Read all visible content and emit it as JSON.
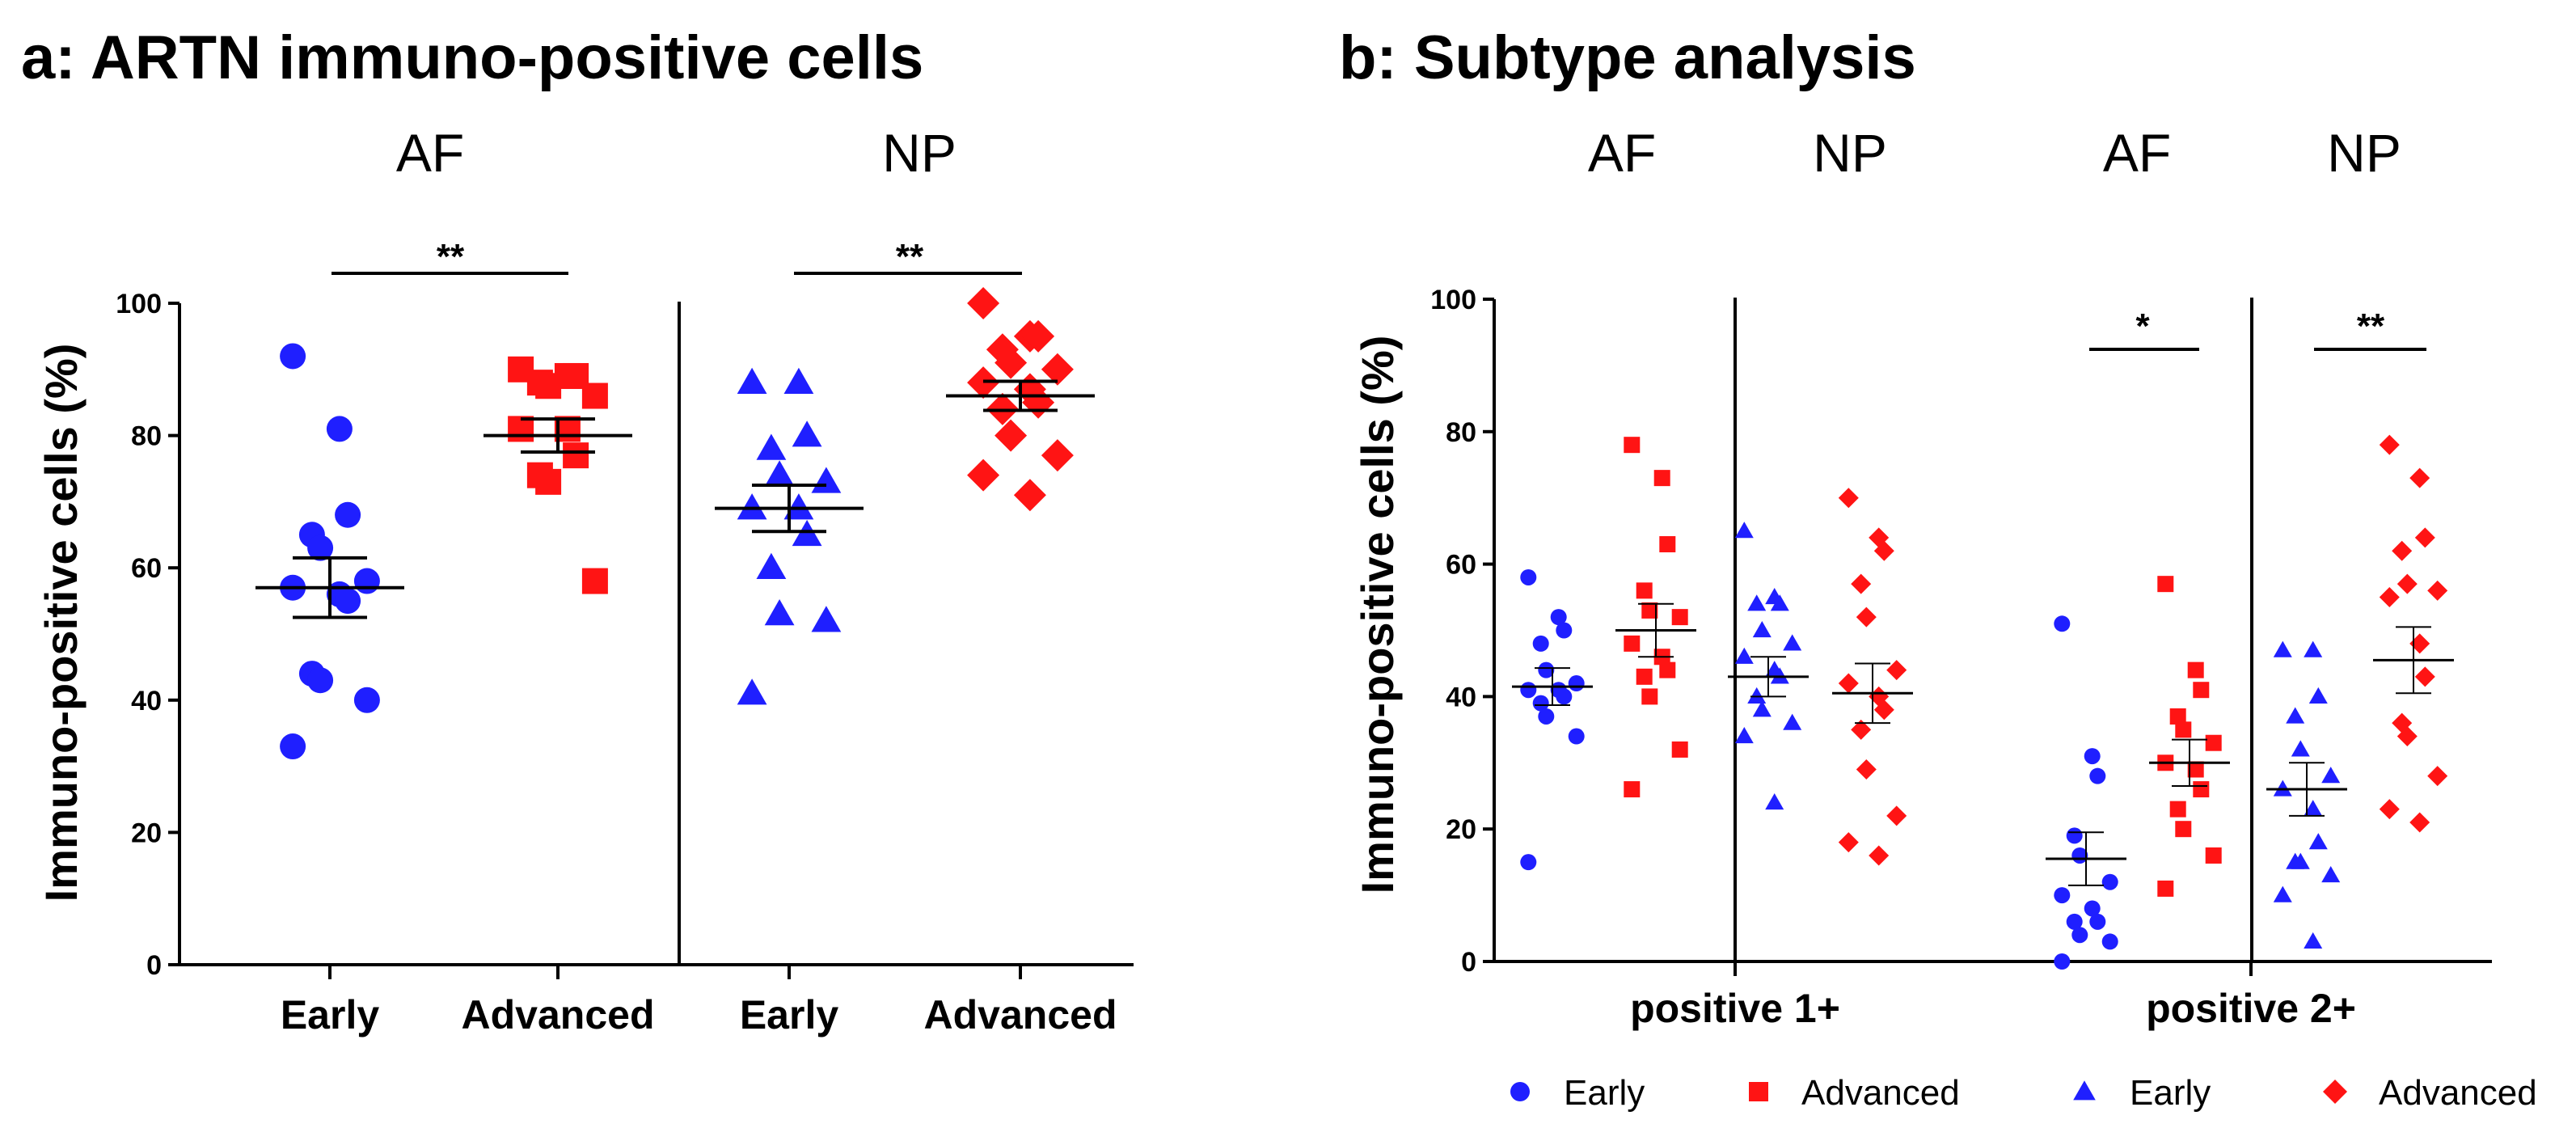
{
  "colors": {
    "early": "#1f1fff",
    "advanced": "#ff1414",
    "axis": "#000000"
  },
  "chart_data": [
    {
      "type": "scatter",
      "panel": "a",
      "title": "a: ARTN immuno-positive cells",
      "ylabel": "Immuno-positive cells (%)",
      "ylim": [
        0,
        100
      ],
      "yticks": [
        "0",
        "20",
        "40",
        "60",
        "80",
        "100"
      ],
      "group_headers": [
        "AF",
        "NP"
      ],
      "categories": [
        "Early",
        "Advanced",
        "Early",
        "Advanced"
      ],
      "significance": [
        "**",
        "**"
      ],
      "series": [
        {
          "name": "AF Early",
          "stage": "early",
          "marker": "circle",
          "values": [
            92,
            81,
            68,
            65,
            63,
            58,
            57,
            56,
            55,
            44,
            43,
            40,
            33
          ],
          "mean": 57,
          "sem": 4.5
        },
        {
          "name": "AF Advanced",
          "stage": "advanced",
          "marker": "square",
          "values": [
            90,
            89,
            89,
            88,
            87.5,
            86,
            81,
            81,
            77,
            74,
            73,
            58
          ],
          "mean": 80,
          "sem": 2.5
        },
        {
          "name": "NP Early",
          "stage": "early",
          "marker": "triangle",
          "values": [
            88,
            88,
            80,
            78,
            74,
            73,
            69,
            69,
            65,
            60,
            53,
            52,
            41
          ],
          "mean": 69,
          "sem": 3.5
        },
        {
          "name": "NP Advanced",
          "stage": "advanced",
          "marker": "diamond",
          "values": [
            100,
            95,
            95,
            93,
            91,
            90,
            88,
            87,
            85,
            84,
            80,
            77,
            74,
            71
          ],
          "mean": 86,
          "sem": 2.2
        }
      ]
    },
    {
      "type": "scatter",
      "panel": "b",
      "title": "b: Subtype analysis",
      "ylabel": "Immuno-positive cells (%)",
      "ylim": [
        0,
        100
      ],
      "yticks": [
        "0",
        "20",
        "40",
        "60",
        "80",
        "100"
      ],
      "group_headers": [
        "AF",
        "NP",
        "AF",
        "NP"
      ],
      "categories": [
        "positive 1+",
        "positive 2+"
      ],
      "significance": [
        "*",
        "**"
      ],
      "legend": [
        "Early",
        "Advanced",
        "Early",
        "Advanced"
      ],
      "series": [
        {
          "name": "1+ AF Early",
          "stage": "early",
          "marker": "circle",
          "values": [
            58,
            52,
            50,
            48,
            44,
            42,
            41,
            41,
            40,
            39,
            37,
            34,
            15
          ],
          "mean": 41.5,
          "sem": 2.8
        },
        {
          "name": "1+ AF Advanced",
          "stage": "advanced",
          "marker": "square",
          "values": [
            78,
            73,
            63,
            56,
            53,
            52,
            48,
            46,
            44,
            43,
            40,
            32,
            26
          ],
          "mean": 50,
          "sem": 4
        },
        {
          "name": "1+ NP Early",
          "stage": "early",
          "marker": "triangle",
          "values": [
            65,
            55,
            54,
            54,
            50,
            48,
            46,
            44,
            43,
            40,
            38,
            36,
            34,
            24
          ],
          "mean": 43,
          "sem": 3
        },
        {
          "name": "1+ NP Advanced",
          "stage": "advanced",
          "marker": "diamond",
          "values": [
            70,
            64,
            62,
            57,
            52,
            44,
            42,
            40,
            38,
            35,
            29,
            22,
            18,
            16
          ],
          "mean": 40.5,
          "sem": 4.5
        },
        {
          "name": "2+ AF Early",
          "stage": "early",
          "marker": "circle",
          "values": [
            51,
            31,
            28,
            19,
            16,
            12,
            10,
            8,
            6,
            6,
            4,
            3,
            0
          ],
          "mean": 15.5,
          "sem": 4
        },
        {
          "name": "2+ AF Advanced",
          "stage": "advanced",
          "marker": "square",
          "values": [
            57,
            44,
            41,
            37,
            35,
            33,
            30,
            29,
            26,
            23,
            20,
            16,
            11
          ],
          "mean": 30,
          "sem": 3.5
        },
        {
          "name": "2+ NP Early",
          "stage": "early",
          "marker": "triangle",
          "values": [
            47,
            47,
            40,
            37,
            32,
            28,
            26,
            23,
            18,
            15,
            15,
            13,
            10,
            3
          ],
          "mean": 26,
          "sem": 4
        },
        {
          "name": "2+ NP Advanced",
          "stage": "advanced",
          "marker": "diamond",
          "values": [
            78,
            73,
            64,
            62,
            57,
            56,
            55,
            48,
            43,
            36,
            34,
            28,
            23,
            21
          ],
          "mean": 45.5,
          "sem": 5
        }
      ]
    }
  ]
}
